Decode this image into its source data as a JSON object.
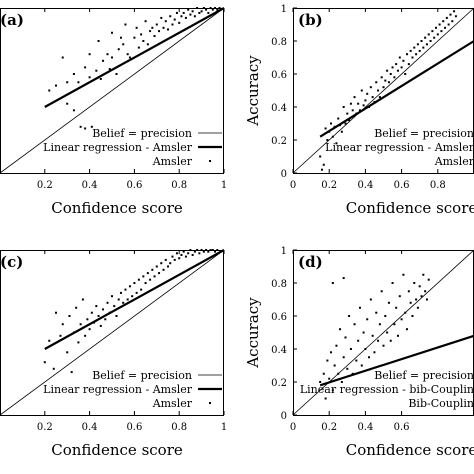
{
  "chart_data": [
    {
      "type": "scatter",
      "panel_label": "(a)",
      "xlabel": "Confidence score",
      "ylabel": "",
      "xlim": [
        0,
        1
      ],
      "ylim": [
        0,
        1
      ],
      "xticks": [
        "0.2",
        "0.4",
        "0.6",
        "0.8",
        "1"
      ],
      "yticks": [],
      "legend": [
        "Belief = precision",
        "Linear regression - Amsler",
        "Amsler"
      ],
      "legend_position": "bottom-right",
      "diagonal": [
        [
          0,
          0
        ],
        [
          1,
          1
        ]
      ],
      "regression": [
        [
          0.2,
          0.4
        ],
        [
          1,
          1
        ]
      ],
      "points": [
        [
          0.22,
          0.5
        ],
        [
          0.25,
          0.53
        ],
        [
          0.28,
          0.7
        ],
        [
          0.3,
          0.55
        ],
        [
          0.3,
          0.42
        ],
        [
          0.33,
          0.6
        ],
        [
          0.33,
          0.38
        ],
        [
          0.35,
          0.55
        ],
        [
          0.36,
          0.28
        ],
        [
          0.38,
          0.64
        ],
        [
          0.38,
          0.27
        ],
        [
          0.4,
          0.58
        ],
        [
          0.4,
          0.72
        ],
        [
          0.41,
          0.28
        ],
        [
          0.43,
          0.62
        ],
        [
          0.44,
          0.8
        ],
        [
          0.45,
          0.57
        ],
        [
          0.46,
          0.68
        ],
        [
          0.48,
          0.72
        ],
        [
          0.49,
          0.63
        ],
        [
          0.5,
          0.85
        ],
        [
          0.5,
          0.7
        ],
        [
          0.52,
          0.6
        ],
        [
          0.53,
          0.75
        ],
        [
          0.54,
          0.82
        ],
        [
          0.55,
          0.78
        ],
        [
          0.56,
          0.9
        ],
        [
          0.57,
          0.72
        ],
        [
          0.58,
          0.7
        ],
        [
          0.6,
          0.82
        ],
        [
          0.61,
          0.88
        ],
        [
          0.62,
          0.76
        ],
        [
          0.63,
          0.84
        ],
        [
          0.64,
          0.8
        ],
        [
          0.65,
          0.92
        ],
        [
          0.66,
          0.78
        ],
        [
          0.67,
          0.86
        ],
        [
          0.68,
          0.88
        ],
        [
          0.69,
          0.83
        ],
        [
          0.7,
          0.9
        ],
        [
          0.71,
          0.86
        ],
        [
          0.72,
          0.94
        ],
        [
          0.73,
          0.88
        ],
        [
          0.74,
          0.92
        ],
        [
          0.75,
          0.87
        ],
        [
          0.76,
          0.95
        ],
        [
          0.77,
          0.9
        ],
        [
          0.78,
          0.93
        ],
        [
          0.79,
          0.97
        ],
        [
          0.8,
          0.91
        ],
        [
          0.81,
          0.95
        ],
        [
          0.82,
          0.97
        ],
        [
          0.83,
          0.94
        ],
        [
          0.84,
          0.99
        ],
        [
          0.85,
          0.96
        ],
        [
          0.86,
          0.98
        ],
        [
          0.87,
          0.95
        ],
        [
          0.88,
          1.0
        ],
        [
          0.89,
          0.97
        ],
        [
          0.9,
          0.98
        ],
        [
          0.91,
          1.0
        ],
        [
          0.92,
          0.99
        ],
        [
          0.93,
          0.97
        ],
        [
          0.94,
          1.0
        ],
        [
          0.95,
          0.99
        ],
        [
          0.96,
          1.0
        ],
        [
          0.97,
          0.99
        ],
        [
          0.98,
          1.0
        ]
      ]
    },
    {
      "type": "scatter",
      "panel_label": "(b)",
      "xlabel": "Confidence score",
      "ylabel": "Accuracy",
      "xlim": [
        0,
        1
      ],
      "ylim": [
        0,
        1
      ],
      "xticks": [
        "0",
        "0.2",
        "0.4",
        "0.6",
        "0.8"
      ],
      "yticks": [
        "0",
        "0.2",
        "0.4",
        "0.6",
        "0.8",
        "1"
      ],
      "legend": [
        "Belief = precision",
        "Linear regression - Amsler",
        "Amsler"
      ],
      "legend_position": "bottom-right",
      "diagonal": [
        [
          0,
          0
        ],
        [
          1,
          1
        ]
      ],
      "regression": [
        [
          0.15,
          0.22
        ],
        [
          1,
          0.8
        ]
      ],
      "points": [
        [
          0.15,
          0.1
        ],
        [
          0.16,
          0.02
        ],
        [
          0.17,
          0.05
        ],
        [
          0.18,
          0.27
        ],
        [
          0.19,
          0.2
        ],
        [
          0.2,
          0.25
        ],
        [
          0.21,
          0.3
        ],
        [
          0.22,
          0.22
        ],
        [
          0.23,
          0.28
        ],
        [
          0.24,
          0.18
        ],
        [
          0.25,
          0.33
        ],
        [
          0.26,
          0.29
        ],
        [
          0.27,
          0.25
        ],
        [
          0.28,
          0.4
        ],
        [
          0.29,
          0.3
        ],
        [
          0.3,
          0.36
        ],
        [
          0.31,
          0.32
        ],
        [
          0.32,
          0.42
        ],
        [
          0.33,
          0.38
        ],
        [
          0.34,
          0.46
        ],
        [
          0.35,
          0.36
        ],
        [
          0.36,
          0.42
        ],
        [
          0.37,
          0.38
        ],
        [
          0.38,
          0.5
        ],
        [
          0.39,
          0.41
        ],
        [
          0.4,
          0.44
        ],
        [
          0.41,
          0.48
        ],
        [
          0.42,
          0.4
        ],
        [
          0.43,
          0.52
        ],
        [
          0.44,
          0.46
        ],
        [
          0.45,
          0.43
        ],
        [
          0.46,
          0.55
        ],
        [
          0.47,
          0.5
        ],
        [
          0.48,
          0.46
        ],
        [
          0.49,
          0.58
        ],
        [
          0.5,
          0.52
        ],
        [
          0.51,
          0.56
        ],
        [
          0.52,
          0.62
        ],
        [
          0.53,
          0.55
        ],
        [
          0.54,
          0.6
        ],
        [
          0.55,
          0.64
        ],
        [
          0.56,
          0.58
        ],
        [
          0.57,
          0.66
        ],
        [
          0.58,
          0.62
        ],
        [
          0.59,
          0.7
        ],
        [
          0.6,
          0.64
        ],
        [
          0.61,
          0.68
        ],
        [
          0.62,
          0.6
        ],
        [
          0.63,
          0.72
        ],
        [
          0.64,
          0.66
        ],
        [
          0.65,
          0.74
        ],
        [
          0.66,
          0.7
        ],
        [
          0.67,
          0.76
        ],
        [
          0.68,
          0.72
        ],
        [
          0.69,
          0.78
        ],
        [
          0.7,
          0.74
        ],
        [
          0.71,
          0.8
        ],
        [
          0.72,
          0.76
        ],
        [
          0.73,
          0.82
        ],
        [
          0.74,
          0.78
        ],
        [
          0.75,
          0.84
        ],
        [
          0.76,
          0.8
        ],
        [
          0.77,
          0.86
        ],
        [
          0.78,
          0.82
        ],
        [
          0.79,
          0.88
        ],
        [
          0.8,
          0.84
        ],
        [
          0.81,
          0.9
        ],
        [
          0.82,
          0.86
        ],
        [
          0.83,
          0.92
        ],
        [
          0.84,
          0.88
        ],
        [
          0.85,
          0.94
        ],
        [
          0.86,
          0.9
        ],
        [
          0.87,
          0.96
        ],
        [
          0.88,
          0.92
        ],
        [
          0.89,
          0.98
        ],
        [
          0.9,
          0.95
        ]
      ]
    },
    {
      "type": "scatter",
      "panel_label": "(c)",
      "xlabel": "Confidence score",
      "ylabel": "",
      "xlim": [
        0,
        1
      ],
      "ylim": [
        0,
        1
      ],
      "xticks": [
        "0.2",
        "0.4",
        "0.6",
        "0.8",
        "1"
      ],
      "yticks": [],
      "legend": [
        "Belief = precision",
        "Linear regression - Amsler",
        "Amsler"
      ],
      "legend_position": "bottom-right",
      "diagonal": [
        [
          0,
          0
        ],
        [
          1,
          1
        ]
      ],
      "regression": [
        [
          0.2,
          0.4
        ],
        [
          1,
          1
        ]
      ],
      "points": [
        [
          0.2,
          0.32
        ],
        [
          0.22,
          0.45
        ],
        [
          0.24,
          0.28
        ],
        [
          0.25,
          0.62
        ],
        [
          0.27,
          0.48
        ],
        [
          0.28,
          0.55
        ],
        [
          0.3,
          0.38
        ],
        [
          0.31,
          0.6
        ],
        [
          0.32,
          0.26
        ],
        [
          0.33,
          0.5
        ],
        [
          0.34,
          0.65
        ],
        [
          0.35,
          0.44
        ],
        [
          0.36,
          0.55
        ],
        [
          0.37,
          0.7
        ],
        [
          0.38,
          0.48
        ],
        [
          0.39,
          0.58
        ],
        [
          0.4,
          0.52
        ],
        [
          0.41,
          0.62
        ],
        [
          0.42,
          0.56
        ],
        [
          0.43,
          0.66
        ],
        [
          0.44,
          0.6
        ],
        [
          0.45,
          0.54
        ],
        [
          0.46,
          0.64
        ],
        [
          0.47,
          0.58
        ],
        [
          0.48,
          0.68
        ],
        [
          0.49,
          0.62
        ],
        [
          0.5,
          0.72
        ],
        [
          0.51,
          0.66
        ],
        [
          0.52,
          0.6
        ],
        [
          0.53,
          0.7
        ],
        [
          0.54,
          0.74
        ],
        [
          0.55,
          0.68
        ],
        [
          0.56,
          0.76
        ],
        [
          0.57,
          0.7
        ],
        [
          0.58,
          0.78
        ],
        [
          0.59,
          0.72
        ],
        [
          0.6,
          0.8
        ],
        [
          0.61,
          0.74
        ],
        [
          0.62,
          0.82
        ],
        [
          0.63,
          0.76
        ],
        [
          0.64,
          0.84
        ],
        [
          0.65,
          0.8
        ],
        [
          0.66,
          0.86
        ],
        [
          0.67,
          0.82
        ],
        [
          0.68,
          0.88
        ],
        [
          0.69,
          0.84
        ],
        [
          0.7,
          0.9
        ],
        [
          0.71,
          0.86
        ],
        [
          0.72,
          0.92
        ],
        [
          0.73,
          0.88
        ],
        [
          0.74,
          0.94
        ],
        [
          0.75,
          0.9
        ],
        [
          0.76,
          0.92
        ],
        [
          0.77,
          0.96
        ],
        [
          0.78,
          0.94
        ],
        [
          0.79,
          0.98
        ],
        [
          0.8,
          0.95
        ],
        [
          0.81,
          0.97
        ],
        [
          0.82,
          0.99
        ],
        [
          0.83,
          0.96
        ],
        [
          0.84,
          0.98
        ],
        [
          0.85,
          1.0
        ],
        [
          0.86,
          0.97
        ],
        [
          0.87,
          0.99
        ],
        [
          0.88,
          1.0
        ],
        [
          0.89,
          0.98
        ],
        [
          0.9,
          1.0
        ],
        [
          0.91,
          0.99
        ],
        [
          0.92,
          1.0
        ],
        [
          0.93,
          0.99
        ],
        [
          0.94,
          1.0
        ],
        [
          0.95,
          1.0
        ],
        [
          0.96,
          0.99
        ],
        [
          0.97,
          1.0
        ]
      ]
    },
    {
      "type": "scatter",
      "panel_label": "(d)",
      "xlabel": "Confidence score",
      "ylabel": "Accuracy",
      "xlim": [
        0,
        1
      ],
      "ylim": [
        0,
        1
      ],
      "xticks": [
        "0",
        "0.2",
        "0.4",
        "0.6"
      ],
      "yticks": [
        "0",
        "0.2",
        "0.4",
        "0.6",
        "0.8",
        "1"
      ],
      "legend": [
        "Belief = precision",
        "Linear regression - bib-Couplin",
        "Bib-Couplin"
      ],
      "legend_position": "bottom-right",
      "diagonal": [
        [
          0,
          0
        ],
        [
          1,
          1
        ]
      ],
      "regression": [
        [
          0.15,
          0.18
        ],
        [
          1,
          0.48
        ]
      ],
      "points": [
        [
          0.15,
          0.2
        ],
        [
          0.17,
          0.25
        ],
        [
          0.18,
          0.1
        ],
        [
          0.19,
          0.33
        ],
        [
          0.2,
          0.22
        ],
        [
          0.21,
          0.38
        ],
        [
          0.22,
          0.15
        ],
        [
          0.23,
          0.3
        ],
        [
          0.24,
          0.42
        ],
        [
          0.25,
          0.25
        ],
        [
          0.26,
          0.52
        ],
        [
          0.27,
          0.2
        ],
        [
          0.28,
          0.35
        ],
        [
          0.29,
          0.47
        ],
        [
          0.3,
          0.28
        ],
        [
          0.31,
          0.6
        ],
        [
          0.32,
          0.4
        ],
        [
          0.33,
          0.25
        ],
        [
          0.34,
          0.55
        ],
        [
          0.35,
          0.33
        ],
        [
          0.36,
          0.45
        ],
        [
          0.37,
          0.65
        ],
        [
          0.38,
          0.3
        ],
        [
          0.39,
          0.5
        ],
        [
          0.4,
          0.4
        ],
        [
          0.41,
          0.58
        ],
        [
          0.42,
          0.35
        ],
        [
          0.43,
          0.7
        ],
        [
          0.44,
          0.48
        ],
        [
          0.45,
          0.38
        ],
        [
          0.46,
          0.62
        ],
        [
          0.47,
          0.45
        ],
        [
          0.48,
          0.55
        ],
        [
          0.49,
          0.75
        ],
        [
          0.5,
          0.42
        ],
        [
          0.51,
          0.6
        ],
        [
          0.52,
          0.5
        ],
        [
          0.53,
          0.68
        ],
        [
          0.54,
          0.45
        ],
        [
          0.55,
          0.8
        ],
        [
          0.56,
          0.55
        ],
        [
          0.57,
          0.65
        ],
        [
          0.58,
          0.48
        ],
        [
          0.59,
          0.72
        ],
        [
          0.6,
          0.58
        ],
        [
          0.61,
          0.85
        ],
        [
          0.62,
          0.62
        ],
        [
          0.63,
          0.52
        ],
        [
          0.64,
          0.75
        ],
        [
          0.65,
          0.68
        ],
        [
          0.66,
          0.6
        ],
        [
          0.67,
          0.8
        ],
        [
          0.68,
          0.7
        ],
        [
          0.69,
          0.65
        ],
        [
          0.7,
          0.78
        ],
        [
          0.71,
          0.72
        ],
        [
          0.72,
          0.85
        ],
        [
          0.73,
          0.75
        ],
        [
          0.74,
          0.7
        ],
        [
          0.75,
          0.82
        ],
        [
          0.28,
          0.83
        ],
        [
          0.22,
          0.8
        ]
      ]
    }
  ]
}
